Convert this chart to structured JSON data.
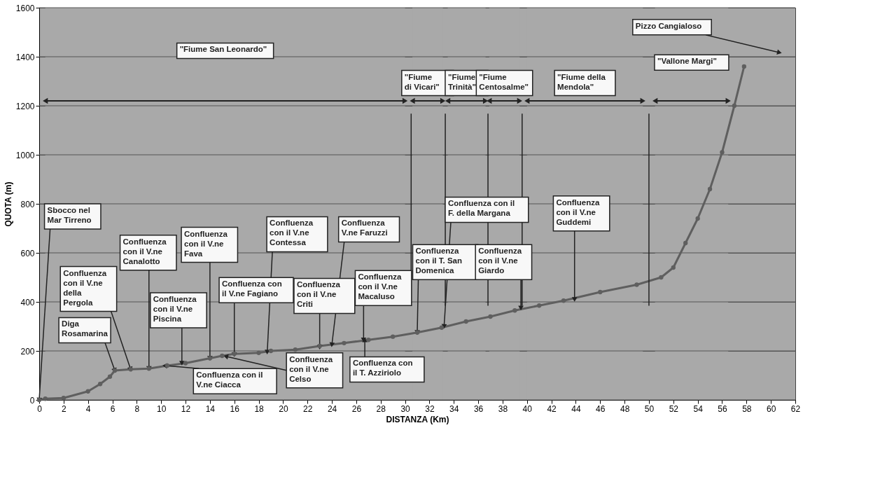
{
  "chart_data": {
    "type": "line",
    "xlabel": "DISTANZA (Km)",
    "ylabel": "QUOTA (m)",
    "x": [
      0,
      0.5,
      2,
      4,
      5,
      5.8,
      6.2,
      7.5,
      9,
      10.5,
      12,
      14,
      15,
      16,
      18,
      19,
      21,
      23,
      25,
      27,
      29,
      31,
      33,
      35,
      37,
      39,
      41,
      43,
      46,
      49,
      51,
      52,
      53,
      54,
      55,
      56,
      57,
      57.8
    ],
    "series": [
      {
        "color": "#5f5f5f",
        "values": [
          0,
          5,
          8,
          35,
          65,
          95,
          120,
          125,
          128,
          140,
          150,
          170,
          180,
          188,
          192,
          200,
          205,
          220,
          232,
          245,
          258,
          275,
          295,
          320,
          340,
          365,
          385,
          405,
          440,
          470,
          500,
          540,
          640,
          740,
          860,
          1010,
          1200,
          1360
        ]
      }
    ],
    "xlim": [
      0,
      62
    ],
    "xticks": [
      0,
      2,
      4,
      6,
      8,
      10,
      12,
      14,
      16,
      18,
      20,
      22,
      24,
      26,
      28,
      30,
      32,
      34,
      36,
      38,
      40,
      42,
      44,
      46,
      48,
      50,
      52,
      54,
      56,
      58,
      60,
      62
    ],
    "ylim": [
      0,
      1600
    ],
    "yticks": [
      0,
      200,
      400,
      600,
      800,
      {
        "value": 1000,
        "label": "1000"
      },
      {
        "value": 1200,
        "label": "1200"
      },
      {
        "value": 1400,
        "label": "1400"
      },
      {
        "value": 1600,
        "label": "1600"
      }
    ],
    "grid": "y",
    "legend": false,
    "marker": "circle",
    "line_style": "solid",
    "ref_lines": [
      {
        "axis": "x",
        "value": 30.5
      },
      {
        "axis": "x",
        "value": 33.3
      },
      {
        "axis": "x",
        "value": 36.8
      },
      {
        "axis": "x",
        "value": 39.6
      },
      {
        "axis": "x",
        "value": 50
      }
    ],
    "bands": [
      {
        "axis": "x",
        "from": 0.5,
        "to": 30,
        "label": "\"Fiume San Leonardo\"",
        "color": "#a9a9a9"
      },
      {
        "axis": "x",
        "from": 30.6,
        "to": 33.1,
        "label": "\"Fiume\ndi Vicari\"",
        "color": "#a9a9a9"
      },
      {
        "axis": "x",
        "from": 33.5,
        "to": 36.6,
        "label": "\"Fiume\nTrinità\"",
        "color": "#a9a9a9"
      },
      {
        "axis": "x",
        "from": 36.9,
        "to": 39.4,
        "label": "\"Fiume\nCentosalme\"",
        "color": "#a9a9a9"
      },
      {
        "axis": "x",
        "from": 40,
        "to": 49.5,
        "label": "\"Fiume della\nMendola\"",
        "color": "#a9a9a9"
      },
      {
        "axis": "x",
        "from": 50.5,
        "to": 56.5,
        "label": "\"Vallone Margi\"",
        "color": "#a9a9a9"
      }
    ],
    "annotations": [
      {
        "text": "Sbocco nel\nMar Tirreno",
        "x": 0,
        "y": 0
      },
      {
        "text": "Confluenza\ncon il V.ne\ndella\nPergola",
        "x": 7.5,
        "y": 125
      },
      {
        "text": "Diga\nRosamarina",
        "x": 6.2,
        "y": 120
      },
      {
        "text": "Confluenza\ncon il V.ne\nCanalotto",
        "x": 9,
        "y": 128
      },
      {
        "text": "Confluenza\ncon il V.ne\nPiscina",
        "x": 11.7,
        "y": 150
      },
      {
        "text": "Confluenza\ncon il V.ne\nFava",
        "x": 14,
        "y": 170
      },
      {
        "text": "Confluenza con il\nV.ne Ciacca",
        "x": 10.3,
        "y": 140
      },
      {
        "text": "Confluenza con\nil V.ne Fagiano",
        "x": 16,
        "y": 185
      },
      {
        "text": "Confluenza\ncon il  V.ne\nContessa",
        "x": 18.7,
        "y": 195
      },
      {
        "text": "Confluenza\ncon il V.ne\nCelso",
        "x": 15.3,
        "y": 178
      },
      {
        "text": "Confluenza\ncon il  V.ne\nCriti",
        "x": 23,
        "y": 215
      },
      {
        "text": "Confluenza\nV.ne Faruzzi",
        "x": 24,
        "y": 225
      },
      {
        "text": "Confluenza\ncon il V.ne\nMacaluso",
        "x": 26.6,
        "y": 245
      },
      {
        "text": "Confluenza con\nil T. Azziriolo",
        "x": 26.7,
        "y": 245
      },
      {
        "text": "Confluenza\ncon il T. San\nDomenica",
        "x": 31,
        "y": 275
      },
      {
        "text": "Confluenza con il\nF. della Margana",
        "x": 33.2,
        "y": 300
      },
      {
        "text": "Confluenza\ncon il V.ne\nGiardo",
        "x": 39.5,
        "y": 375
      },
      {
        "text": "Confluenza\ncon il V.ne\nGuddemi",
        "x": 43.9,
        "y": 410
      },
      {
        "text": "Pizzo Cangialoso",
        "x": 60.7,
        "y": 1417
      }
    ]
  }
}
